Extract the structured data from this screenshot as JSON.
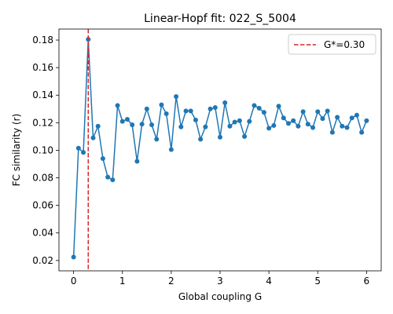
{
  "chart_data": {
    "type": "line",
    "title": "Linear-Hopf fit: 022_S_5004",
    "xlabel": "Global coupling G",
    "ylabel": "FC similarity (r)",
    "xlim": [
      -0.3,
      6.3
    ],
    "ylim": [
      0.0125,
      0.188
    ],
    "xticks": [
      0,
      1,
      2,
      3,
      4,
      5,
      6
    ],
    "xtick_labels": [
      "0",
      "1",
      "2",
      "3",
      "4",
      "5",
      "6"
    ],
    "yticks": [
      0.02,
      0.04,
      0.06,
      0.08,
      0.1,
      0.12,
      0.14,
      0.16,
      0.18
    ],
    "ytick_labels": [
      "0.02",
      "0.04",
      "0.06",
      "0.08",
      "0.10",
      "0.12",
      "0.14",
      "0.16",
      "0.18"
    ],
    "grid": false,
    "legend_position": "top-right",
    "series": [
      {
        "name": "FC similarity",
        "color": "#1f77b4",
        "x": [
          0.0,
          0.1,
          0.2,
          0.3,
          0.4,
          0.5,
          0.6,
          0.7,
          0.8,
          0.9,
          1.0,
          1.1,
          1.2,
          1.3,
          1.4,
          1.5,
          1.6,
          1.7,
          1.8,
          1.9,
          2.0,
          2.1,
          2.2,
          2.3,
          2.4,
          2.5,
          2.6,
          2.7,
          2.8,
          2.9,
          3.0,
          3.1,
          3.2,
          3.3,
          3.4,
          3.5,
          3.6,
          3.7,
          3.8,
          3.9,
          4.0,
          4.1,
          4.2,
          4.3,
          4.4,
          4.5,
          4.6,
          4.7,
          4.8,
          4.9,
          5.0,
          5.1,
          5.2,
          5.3,
          5.4,
          5.5,
          5.6,
          5.7,
          5.8,
          5.9,
          6.0
        ],
        "y": [
          0.0225,
          0.1015,
          0.0985,
          0.1805,
          0.109,
          0.1175,
          0.094,
          0.0805,
          0.0785,
          0.1325,
          0.121,
          0.1225,
          0.1185,
          0.092,
          0.119,
          0.13,
          0.1185,
          0.108,
          0.133,
          0.1265,
          0.1005,
          0.139,
          0.117,
          0.1285,
          0.1285,
          0.122,
          0.108,
          0.117,
          0.13,
          0.131,
          0.1095,
          0.1345,
          0.1175,
          0.1205,
          0.1215,
          0.11,
          0.121,
          0.1325,
          0.1305,
          0.1275,
          0.116,
          0.118,
          0.132,
          0.1235,
          0.1195,
          0.1215,
          0.1175,
          0.128,
          0.119,
          0.1165,
          0.128,
          0.123,
          0.1285,
          0.113,
          0.124,
          0.1175,
          0.1165,
          0.1235,
          0.1255,
          0.113,
          0.1215
        ]
      }
    ],
    "annotations": [
      {
        "type": "vline",
        "x": 0.3,
        "color": "#d62728",
        "style": "dashed",
        "label": "G*=0.30"
      }
    ]
  }
}
